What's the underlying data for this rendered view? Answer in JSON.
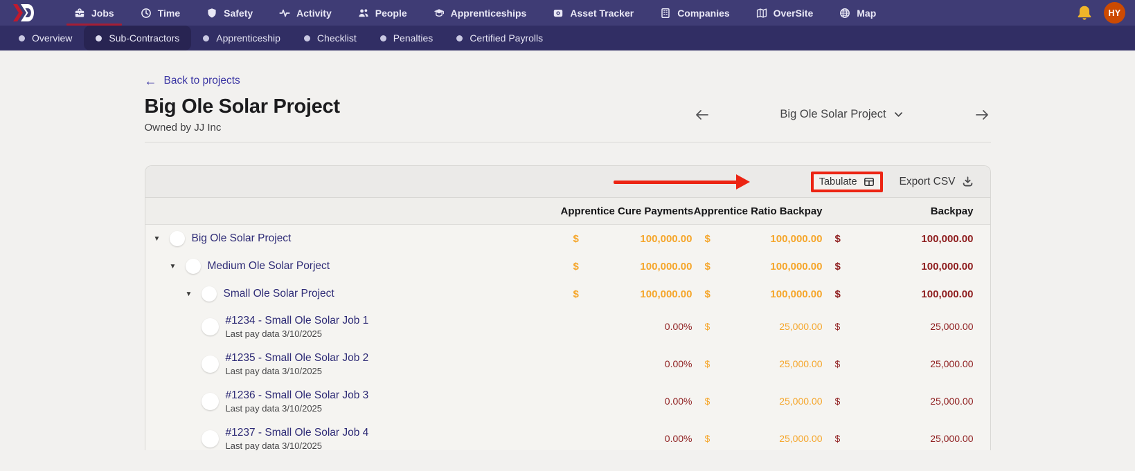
{
  "nav": {
    "brand": "logo-chevron-d",
    "items": [
      {
        "label": "Jobs",
        "icon": "briefcase-icon",
        "active": true
      },
      {
        "label": "Time",
        "icon": "clock-icon",
        "active": false
      },
      {
        "label": "Safety",
        "icon": "shield-icon",
        "active": false
      },
      {
        "label": "Activity",
        "icon": "activity-icon",
        "active": false
      },
      {
        "label": "People",
        "icon": "people-icon",
        "active": false
      },
      {
        "label": "Apprenticeships",
        "icon": "graduation-cap-icon",
        "active": false
      },
      {
        "label": "Asset Tracker",
        "icon": "camera-icon",
        "active": false
      },
      {
        "label": "Companies",
        "icon": "building-icon",
        "active": false
      },
      {
        "label": "OverSite",
        "icon": "map-icon",
        "active": false
      },
      {
        "label": "Map",
        "icon": "globe-icon",
        "active": false
      }
    ],
    "avatar_initials": "HY"
  },
  "subnav": {
    "items": [
      {
        "label": "Overview",
        "active": false
      },
      {
        "label": "Sub-Contractors",
        "active": true
      },
      {
        "label": "Apprenticeship",
        "active": false
      },
      {
        "label": "Checklist",
        "active": false
      },
      {
        "label": "Penalties",
        "active": false
      },
      {
        "label": "Certified Payrolls",
        "active": false
      }
    ]
  },
  "page": {
    "back_link": "Back to projects",
    "title": "Big Ole Solar Project",
    "owner": "Owned by JJ Inc",
    "selector": {
      "value": "Big Ole Solar Project"
    }
  },
  "toolbar": {
    "tabulate_label": "Tabulate",
    "export_label": "Export CSV"
  },
  "table": {
    "columns": [
      "Apprentice Cure Payments",
      "Apprentice Ratio Backpay",
      "Backpay"
    ],
    "rows": [
      {
        "name": "Big Ole Solar Project",
        "level": 0,
        "expandable": true,
        "bold": true,
        "cells": [
          {
            "currency": "$",
            "value": "100,000.00",
            "color": "orange"
          },
          {
            "currency": "$",
            "value": "100,000.00",
            "color": "orange"
          },
          {
            "currency": "$",
            "value": "100,000.00",
            "color": "maroon"
          }
        ]
      },
      {
        "name": "Medium Ole Solar Porject",
        "level": 1,
        "expandable": true,
        "bold": true,
        "cells": [
          {
            "currency": "$",
            "value": "100,000.00",
            "color": "orange"
          },
          {
            "currency": "$",
            "value": "100,000.00",
            "color": "orange"
          },
          {
            "currency": "$",
            "value": "100,000.00",
            "color": "maroon"
          }
        ]
      },
      {
        "name": "Small Ole Solar Project",
        "level": 2,
        "expandable": true,
        "bold": true,
        "cells": [
          {
            "currency": "$",
            "value": "100,000.00",
            "color": "orange"
          },
          {
            "currency": "$",
            "value": "100,000.00",
            "color": "orange"
          },
          {
            "currency": "$",
            "value": "100,000.00",
            "color": "maroon"
          }
        ]
      },
      {
        "name": "#1234 - Small Ole Solar Job 1",
        "sub": "Last pay data 3/10/2025",
        "level": 3,
        "expandable": false,
        "bold": false,
        "cells": [
          {
            "value": "0.00%",
            "color": "maroon"
          },
          {
            "currency": "$",
            "value": "25,000.00",
            "color": "orange"
          },
          {
            "currency": "$",
            "value": "25,000.00",
            "color": "maroon"
          }
        ]
      },
      {
        "name": "#1235 - Small Ole Solar Job 2",
        "sub": "Last pay data 3/10/2025",
        "level": 3,
        "expandable": false,
        "bold": false,
        "cells": [
          {
            "value": "0.00%",
            "color": "maroon"
          },
          {
            "currency": "$",
            "value": "25,000.00",
            "color": "orange"
          },
          {
            "currency": "$",
            "value": "25,000.00",
            "color": "maroon"
          }
        ]
      },
      {
        "name": "#1236 - Small Ole Solar Job 3",
        "sub": "Last pay data 3/10/2025",
        "level": 3,
        "expandable": false,
        "bold": false,
        "cells": [
          {
            "value": "0.00%",
            "color": "maroon"
          },
          {
            "currency": "$",
            "value": "25,000.00",
            "color": "orange"
          },
          {
            "currency": "$",
            "value": "25,000.00",
            "color": "maroon"
          }
        ]
      },
      {
        "name": "#1237 - Small Ole Solar Job 4",
        "sub": "Last pay data 3/10/2025",
        "level": 3,
        "expandable": false,
        "bold": false,
        "cells": [
          {
            "value": "0.00%",
            "color": "maroon"
          },
          {
            "currency": "$",
            "value": "25,000.00",
            "color": "orange"
          },
          {
            "currency": "$",
            "value": "25,000.00",
            "color": "maroon"
          }
        ]
      }
    ]
  },
  "colors": {
    "nav_bg": "#3f3c75",
    "subnav_bg": "#312e64",
    "active_pill": "#282452",
    "active_underline": "#a51e35",
    "annotation_red": "#ec2413",
    "money_orange": "#f5a62b",
    "money_maroon": "#8e1d1e",
    "link_indigo": "#3a35a3",
    "tree_indigo": "#2e2b76",
    "bell_yellow": "#f0b429",
    "avatar_orange": "#cc4a02"
  }
}
